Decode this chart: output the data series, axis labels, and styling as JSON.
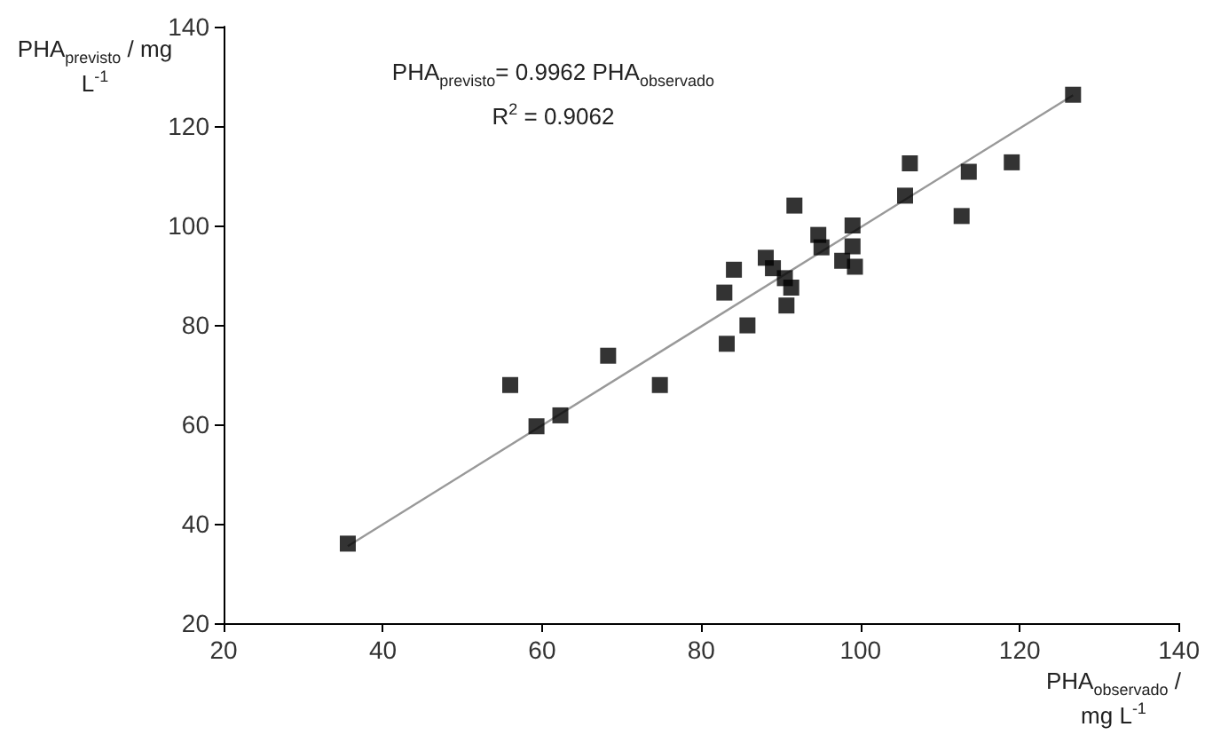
{
  "chart_data": {
    "type": "scatter",
    "xlabel": "PHA$_{observado}$ / mg L$^{-1}$",
    "ylabel": "PHA$_{previsto}$ / mg L$^{-1}$",
    "annotations": [
      "PHA$_{previsto}$= 0.9962  PHA$_{observado}$",
      "R$^{2}$ = 0.9062"
    ],
    "xlim": [
      20,
      140
    ],
    "xticks": [
      20,
      40,
      60,
      80,
      100,
      120,
      140
    ],
    "ylim": [
      20,
      140
    ],
    "yticks": [
      20,
      40,
      60,
      80,
      100,
      120,
      140
    ],
    "grid": false,
    "marker": "square",
    "series": [
      {
        "color": "#000000",
        "x": [
          35.6,
          56.0,
          59.3,
          62.3,
          68.3,
          74.8,
          82.9,
          83.2,
          84.1,
          85.8,
          88.1,
          89.0,
          90.5,
          90.7,
          91.3,
          91.7,
          94.7,
          95.1,
          97.7,
          99.0,
          99.0,
          99.3,
          105.6,
          106.2,
          112.7,
          113.6,
          119.0,
          126.7
        ],
        "values": [
          36.0,
          67.9,
          59.6,
          61.8,
          73.8,
          67.9,
          86.5,
          76.2,
          91.1,
          79.9,
          93.5,
          91.4,
          89.4,
          83.9,
          87.5,
          104.0,
          98.1,
          95.6,
          92.9,
          100.0,
          95.8,
          91.7,
          106.0,
          112.5,
          101.9,
          110.8,
          112.7,
          126.3
        ]
      },
      {
        "type": "line",
        "color": "#999999",
        "marker": "none",
        "line_style": "solid",
        "x": [
          35.6,
          126.7
        ],
        "values": [
          35.5,
          126.2
        ]
      }
    ]
  }
}
